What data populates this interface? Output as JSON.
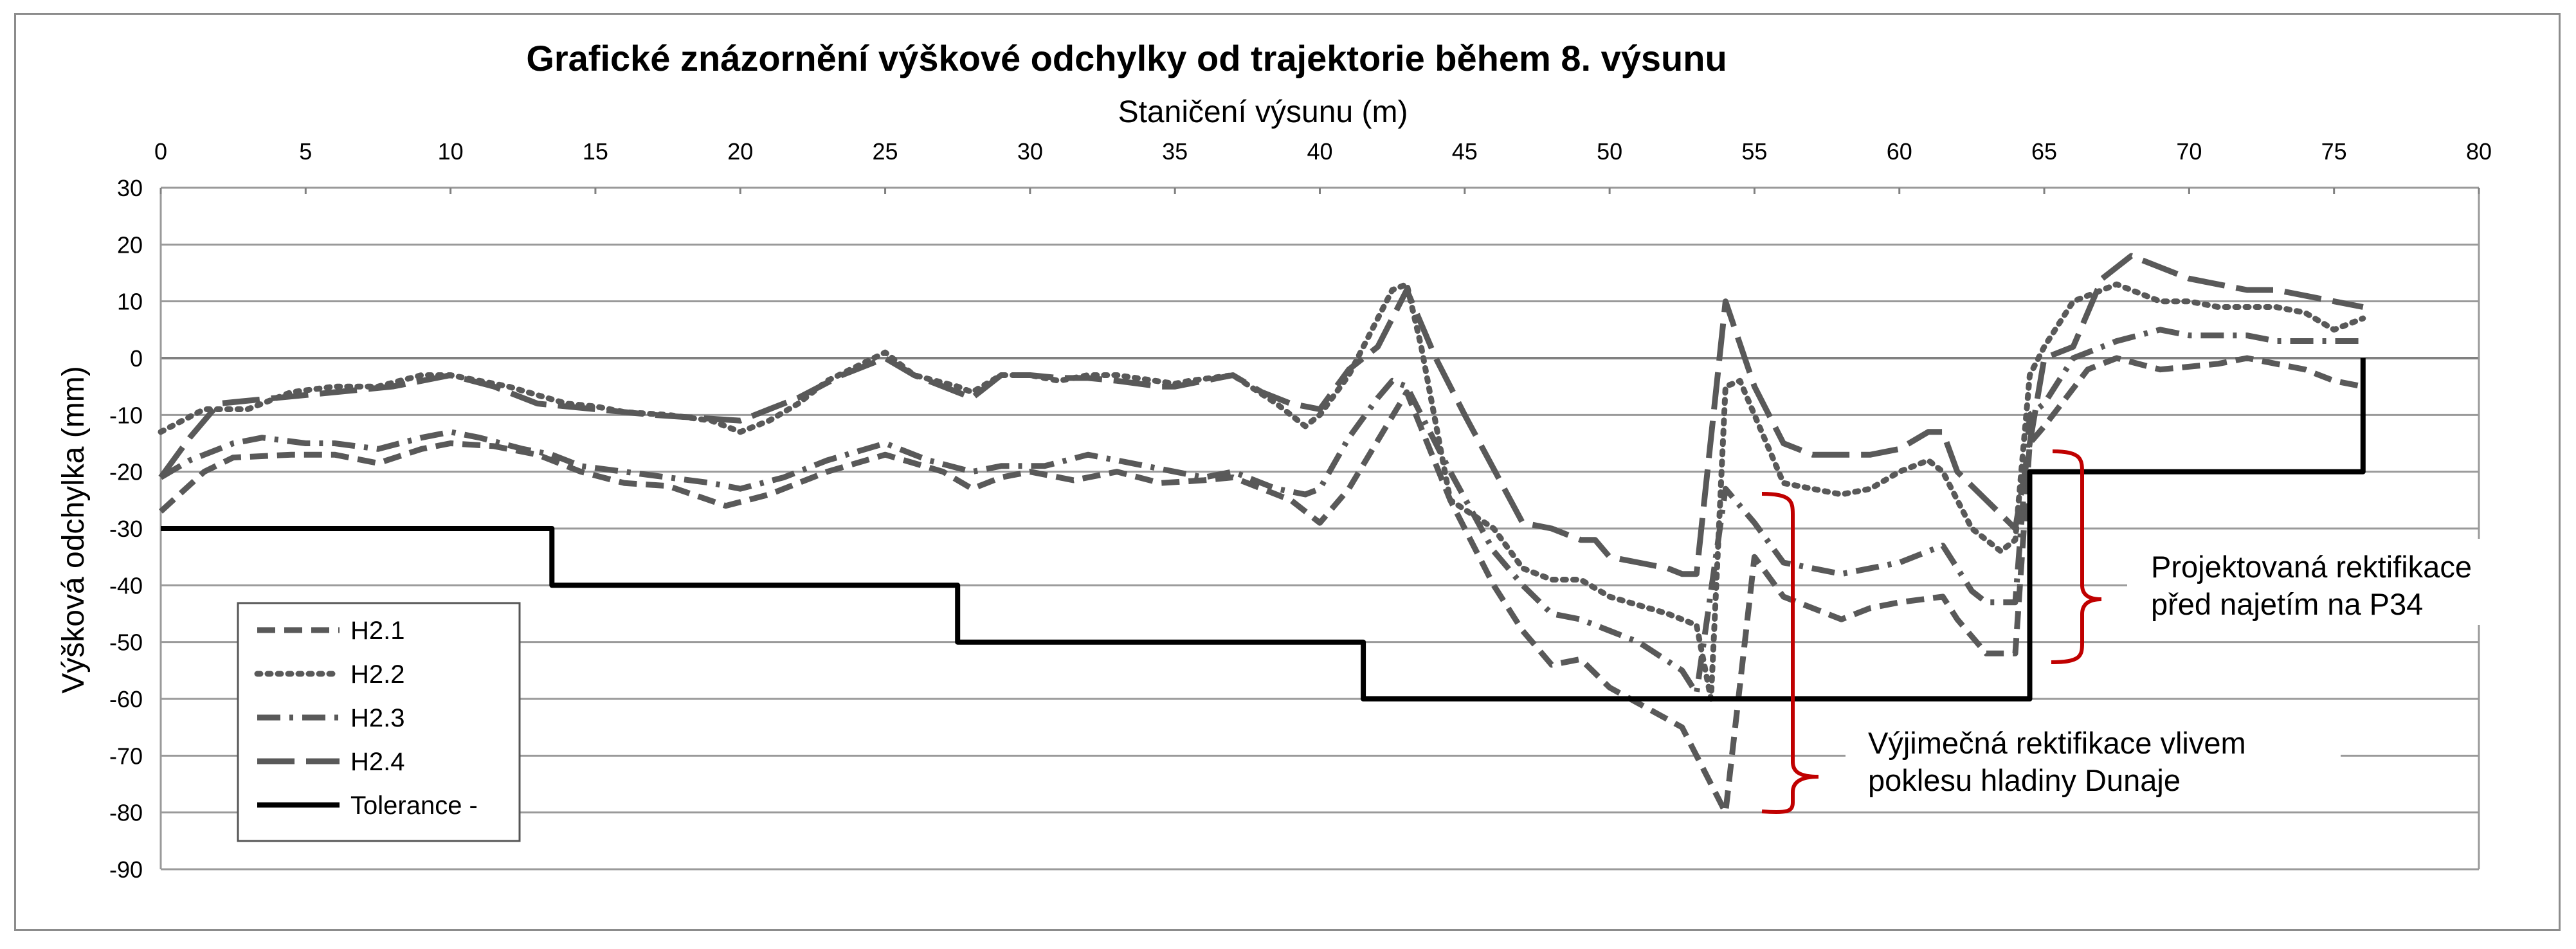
{
  "chart_data": {
    "type": "line",
    "title": "Grafické znázornění výškové odchylky od trajektorie během 8. výsunu",
    "xlabel": "Staničení výsunu (m)",
    "ylabel": "Výšková odchylka (mm)",
    "xlim": [
      0,
      80
    ],
    "ylim": [
      -90,
      30
    ],
    "x_ticks": [
      0,
      5,
      10,
      15,
      20,
      25,
      30,
      35,
      40,
      45,
      50,
      55,
      60,
      65,
      70,
      75,
      80
    ],
    "y_ticks": [
      30,
      20,
      10,
      0,
      -10,
      -20,
      -30,
      -40,
      -50,
      -60,
      -70,
      -80,
      -90
    ],
    "x_axis_position": "top",
    "grid": "horizontal",
    "legend_position": "bottom-left",
    "series": [
      {
        "name": "H2.1",
        "style": "dashed",
        "color": "#595959",
        "points": [
          [
            0,
            -27
          ],
          [
            1.5,
            -20
          ],
          [
            2.5,
            -17.5
          ],
          [
            4.5,
            -17
          ],
          [
            6,
            -17
          ],
          [
            7.5,
            -18.5
          ],
          [
            9,
            -16
          ],
          [
            10,
            -15
          ],
          [
            11.5,
            -15.5
          ],
          [
            13,
            -17
          ],
          [
            14.5,
            -20
          ],
          [
            16,
            -22
          ],
          [
            17.5,
            -22.5
          ],
          [
            19.5,
            -26
          ],
          [
            21,
            -24
          ],
          [
            23,
            -20
          ],
          [
            25,
            -17
          ],
          [
            27,
            -20
          ],
          [
            28,
            -23
          ],
          [
            29,
            -21
          ],
          [
            30,
            -20
          ],
          [
            31.5,
            -21.5
          ],
          [
            33,
            -20
          ],
          [
            34.5,
            -22
          ],
          [
            36,
            -21.5
          ],
          [
            37,
            -21
          ],
          [
            39,
            -25
          ],
          [
            40,
            -29
          ],
          [
            41,
            -23
          ],
          [
            43,
            -6
          ],
          [
            44.5,
            -25
          ],
          [
            46,
            -40
          ],
          [
            47,
            -48
          ],
          [
            48,
            -54
          ],
          [
            49,
            -53
          ],
          [
            50,
            -58
          ],
          [
            52.5,
            -65
          ],
          [
            54,
            -80
          ],
          [
            55,
            -35
          ],
          [
            56,
            -42
          ],
          [
            57,
            -44
          ],
          [
            58,
            -46
          ],
          [
            59,
            -44
          ],
          [
            60,
            -43
          ],
          [
            61.5,
            -42
          ],
          [
            62,
            -46
          ],
          [
            63,
            -52
          ],
          [
            64,
            -52
          ],
          [
            64.5,
            -15
          ],
          [
            65,
            -12
          ],
          [
            66.5,
            -2
          ],
          [
            67.5,
            0
          ],
          [
            69,
            -2
          ],
          [
            70,
            -1.5
          ],
          [
            71,
            -1
          ],
          [
            72,
            0
          ],
          [
            73,
            -1
          ],
          [
            74,
            -2
          ],
          [
            75,
            -4
          ],
          [
            76,
            -5
          ]
        ]
      },
      {
        "name": "H2.2",
        "style": "dotted",
        "color": "#595959",
        "points": [
          [
            0,
            -13
          ],
          [
            1.5,
            -9
          ],
          [
            3,
            -9
          ],
          [
            4.5,
            -6
          ],
          [
            6,
            -5
          ],
          [
            7.5,
            -5
          ],
          [
            9,
            -3
          ],
          [
            10,
            -3
          ],
          [
            11,
            -4
          ],
          [
            12,
            -5
          ],
          [
            14,
            -8
          ],
          [
            15,
            -8.5
          ],
          [
            16,
            -9.5
          ],
          [
            17.5,
            -10
          ],
          [
            19,
            -11
          ],
          [
            20,
            -13
          ],
          [
            21,
            -11
          ],
          [
            22,
            -8
          ],
          [
            23,
            -4
          ],
          [
            25,
            1
          ],
          [
            26,
            -3
          ],
          [
            27.5,
            -5
          ],
          [
            28,
            -6
          ],
          [
            29,
            -3
          ],
          [
            30,
            -3
          ],
          [
            31,
            -4
          ],
          [
            32,
            -3
          ],
          [
            33,
            -3
          ],
          [
            35,
            -4.5
          ],
          [
            35.5,
            -4
          ],
          [
            37,
            -3
          ],
          [
            38.5,
            -8
          ],
          [
            39.5,
            -12
          ],
          [
            40,
            -10
          ],
          [
            41,
            -3
          ],
          [
            42.5,
            12
          ],
          [
            43,
            13
          ],
          [
            43.5,
            2
          ],
          [
            44.5,
            -25
          ],
          [
            46,
            -30
          ],
          [
            47,
            -37
          ],
          [
            48,
            -39
          ],
          [
            49,
            -39
          ],
          [
            50,
            -42
          ],
          [
            52,
            -45
          ],
          [
            53,
            -47
          ],
          [
            53.5,
            -60
          ],
          [
            54,
            -5
          ],
          [
            54.5,
            -4
          ],
          [
            55,
            -10
          ],
          [
            56,
            -22
          ],
          [
            57,
            -23
          ],
          [
            58,
            -24
          ],
          [
            59,
            -23
          ],
          [
            60,
            -20
          ],
          [
            61,
            -18
          ],
          [
            61.5,
            -20
          ],
          [
            62.5,
            -30
          ],
          [
            63.5,
            -34
          ],
          [
            64,
            -32
          ],
          [
            64.5,
            -3
          ],
          [
            65,
            2
          ],
          [
            66,
            10
          ],
          [
            67.5,
            13
          ],
          [
            69,
            10
          ],
          [
            70,
            10
          ],
          [
            71,
            9
          ],
          [
            72,
            9
          ],
          [
            73,
            9
          ],
          [
            74,
            8
          ],
          [
            75,
            5
          ],
          [
            76,
            7
          ]
        ]
      },
      {
        "name": "H2.3",
        "style": "dash-dot",
        "color": "#595959",
        "points": [
          [
            0,
            -21
          ],
          [
            1,
            -18
          ],
          [
            2.5,
            -15
          ],
          [
            3.5,
            -14
          ],
          [
            5,
            -15
          ],
          [
            6,
            -15
          ],
          [
            7.5,
            -16
          ],
          [
            9,
            -14
          ],
          [
            10,
            -13
          ],
          [
            11,
            -14
          ],
          [
            12.5,
            -16
          ],
          [
            13.5,
            -17
          ],
          [
            14.5,
            -19
          ],
          [
            16,
            -20
          ],
          [
            17.5,
            -21
          ],
          [
            19,
            -22
          ],
          [
            20,
            -23
          ],
          [
            21.5,
            -21
          ],
          [
            23,
            -18
          ],
          [
            25,
            -15
          ],
          [
            26.5,
            -18
          ],
          [
            28,
            -20
          ],
          [
            29,
            -19
          ],
          [
            30.5,
            -19
          ],
          [
            32,
            -17
          ],
          [
            33,
            -18
          ],
          [
            34,
            -19
          ],
          [
            35,
            -20
          ],
          [
            36,
            -21
          ],
          [
            37,
            -20
          ],
          [
            38.5,
            -23
          ],
          [
            39.5,
            -24
          ],
          [
            40,
            -23
          ],
          [
            41,
            -14
          ],
          [
            42,
            -7
          ],
          [
            42.5,
            -4
          ],
          [
            43,
            -5
          ],
          [
            44.5,
            -20
          ],
          [
            46,
            -34
          ],
          [
            47,
            -40
          ],
          [
            48,
            -45
          ],
          [
            49,
            -46
          ],
          [
            50,
            -48
          ],
          [
            51,
            -50
          ],
          [
            52.5,
            -55
          ],
          [
            53,
            -59
          ],
          [
            54,
            -23
          ],
          [
            55,
            -29
          ],
          [
            56,
            -36
          ],
          [
            57,
            -37
          ],
          [
            58,
            -38
          ],
          [
            59,
            -37
          ],
          [
            60,
            -36
          ],
          [
            61.5,
            -33
          ],
          [
            62.5,
            -41
          ],
          [
            63,
            -43
          ],
          [
            64,
            -43
          ],
          [
            64.5,
            -10
          ],
          [
            65,
            -8
          ],
          [
            66,
            0
          ],
          [
            67.5,
            3
          ],
          [
            69,
            5
          ],
          [
            70,
            4
          ],
          [
            71,
            4
          ],
          [
            72,
            4
          ],
          [
            73,
            3
          ],
          [
            74,
            3
          ],
          [
            75,
            3
          ],
          [
            76,
            3
          ]
        ]
      },
      {
        "name": "H2.4",
        "style": "long-dash",
        "color": "#595959",
        "points": [
          [
            0,
            -21
          ],
          [
            1,
            -14
          ],
          [
            2,
            -8
          ],
          [
            4,
            -7
          ],
          [
            6,
            -6
          ],
          [
            8,
            -5
          ],
          [
            10,
            -3
          ],
          [
            11.5,
            -5
          ],
          [
            13,
            -8
          ],
          [
            15,
            -9
          ],
          [
            17,
            -10
          ],
          [
            18.5,
            -10.5
          ],
          [
            20,
            -11
          ],
          [
            21,
            -9
          ],
          [
            22,
            -7
          ],
          [
            23.5,
            -3
          ],
          [
            25,
            0
          ],
          [
            26,
            -3
          ],
          [
            27,
            -5
          ],
          [
            27.5,
            -6
          ],
          [
            28,
            -7
          ],
          [
            29,
            -3
          ],
          [
            30,
            -3
          ],
          [
            31,
            -3.5
          ],
          [
            32,
            -3.5
          ],
          [
            33,
            -4
          ],
          [
            34.5,
            -5
          ],
          [
            35,
            -5
          ],
          [
            37,
            -3
          ],
          [
            38,
            -6
          ],
          [
            39,
            -8
          ],
          [
            40,
            -9
          ],
          [
            41,
            -2
          ],
          [
            42,
            2
          ],
          [
            43,
            12
          ],
          [
            44,
            0
          ],
          [
            45,
            -10
          ],
          [
            47,
            -29
          ],
          [
            48,
            -30
          ],
          [
            49,
            -32
          ],
          [
            49.5,
            -32
          ],
          [
            50,
            -35
          ],
          [
            51,
            -36
          ],
          [
            52,
            -37
          ],
          [
            52.5,
            -38
          ],
          [
            53,
            -38
          ],
          [
            54,
            10
          ],
          [
            55,
            -5
          ],
          [
            56,
            -15
          ],
          [
            57,
            -17
          ],
          [
            58,
            -17
          ],
          [
            59,
            -17
          ],
          [
            60,
            -16
          ],
          [
            61,
            -13
          ],
          [
            61.5,
            -13
          ],
          [
            62,
            -20
          ],
          [
            63,
            -25
          ],
          [
            64,
            -30
          ],
          [
            65,
            0
          ],
          [
            66,
            2
          ],
          [
            67,
            14
          ],
          [
            68,
            18
          ],
          [
            69,
            16
          ],
          [
            70,
            14
          ],
          [
            71,
            13
          ],
          [
            72,
            12
          ],
          [
            73,
            12
          ],
          [
            74,
            11
          ],
          [
            75,
            10
          ],
          [
            76,
            9
          ]
        ]
      },
      {
        "name": "Tolerance -",
        "style": "solid",
        "color": "#000000",
        "points": [
          [
            0,
            -30
          ],
          [
            13.5,
            -30
          ],
          [
            13.5,
            -40
          ],
          [
            27.5,
            -40
          ],
          [
            27.5,
            -50
          ],
          [
            41.5,
            -50
          ],
          [
            41.5,
            -60
          ],
          [
            64.5,
            -60
          ],
          [
            64.5,
            -20
          ],
          [
            76,
            -20
          ],
          [
            76,
            0
          ]
        ]
      }
    ],
    "annotations": [
      {
        "text": [
          "Projektovaná rektifikace",
          "před najetím na P34"
        ],
        "color": "#c00000"
      },
      {
        "text": [
          "Výjimečná rektifikace vlivem",
          "poklesu hladiny Dunaje"
        ],
        "color": "#c00000"
      }
    ]
  }
}
